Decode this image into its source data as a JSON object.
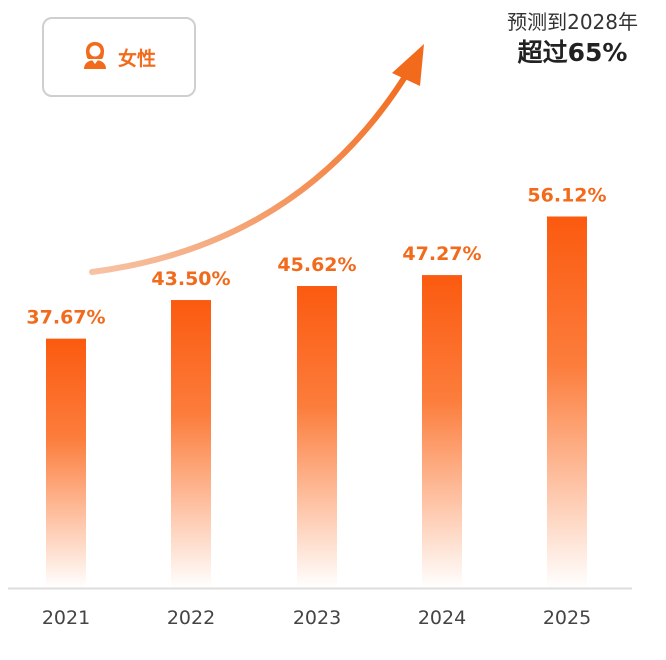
{
  "legend": {
    "label": "女性",
    "icon": "female-user-icon"
  },
  "forecast": {
    "line1": "预测到2028年",
    "line2": "超过65%"
  },
  "colors": {
    "accent": "#f26a1b",
    "bar_top": "#fb5a0f",
    "bar_bottom": "#ffffff",
    "axis": "#dddddd"
  },
  "chart_data": {
    "type": "bar",
    "categories": [
      "2021",
      "2022",
      "2023",
      "2024",
      "2025"
    ],
    "values": [
      37.67,
      43.5,
      45.62,
      47.27,
      56.12
    ],
    "labels": [
      "37.67%",
      "43.50%",
      "45.62%",
      "47.27%",
      "56.12%"
    ],
    "title": "",
    "xlabel": "",
    "ylabel": "",
    "ylim": [
      0,
      62
    ],
    "grid": false,
    "legend": "top-left"
  }
}
